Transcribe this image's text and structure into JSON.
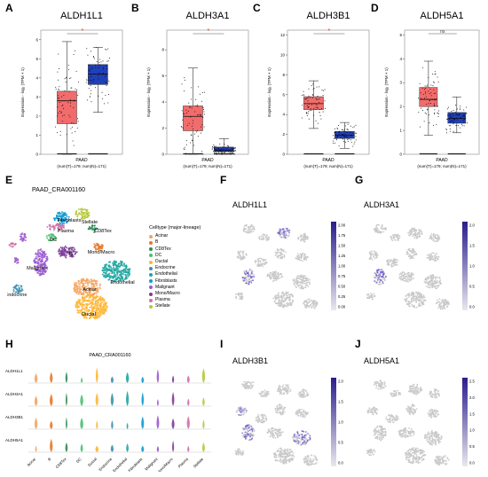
{
  "panel_letters": [
    "A",
    "B",
    "C",
    "D",
    "E",
    "F",
    "G",
    "H",
    "I",
    "J"
  ],
  "chart_data": [
    {
      "type": "box",
      "panel": "A",
      "title": "ALDH1L1",
      "ylabel": "Expression - log₂ (TPM + 1)",
      "xlabel": "PAAD",
      "xsublabel": "(num(T)=179; num(N)=171)",
      "ylim": [
        0,
        6.5
      ],
      "yticks": [
        0,
        1,
        2,
        3,
        4,
        5,
        6
      ],
      "sig": "*",
      "groups": [
        {
          "name": "T",
          "color": "#f26c6c",
          "q1": 1.6,
          "median": 2.8,
          "q3": 3.3,
          "whisker_low": 0,
          "whisker_high": 5.9
        },
        {
          "name": "N",
          "color": "#2040b8",
          "q1": 3.65,
          "median": 4.2,
          "q3": 4.7,
          "whisker_low": 2.2,
          "whisker_high": 5.6
        }
      ]
    },
    {
      "type": "box",
      "panel": "B",
      "title": "ALDH3A1",
      "ylabel": "Expression - log₂ (TPM + 1)",
      "xlabel": "PAAD",
      "xsublabel": "(num(T)=179; num(N)=171)",
      "ylim": [
        0,
        9.5
      ],
      "yticks": [
        0,
        2,
        4,
        6,
        8
      ],
      "sig": "*",
      "groups": [
        {
          "name": "T",
          "color": "#f26c6c",
          "q1": 1.8,
          "median": 2.9,
          "q3": 3.7,
          "whisker_low": 0,
          "whisker_high": 6.6
        },
        {
          "name": "N",
          "color": "#2040b8",
          "q1": 0.2,
          "median": 0.32,
          "q3": 0.55,
          "whisker_low": 0,
          "whisker_high": 1.2
        }
      ]
    },
    {
      "type": "box",
      "panel": "C",
      "title": "ALDH3B1",
      "ylabel": "Expression - log₂ (TPM + 1)",
      "xlabel": "PAAD",
      "xsublabel": "(num(T)=179; num(N)=171)",
      "ylim": [
        0,
        12.5
      ],
      "yticks": [
        0,
        2,
        4,
        6,
        8,
        10,
        12
      ],
      "sig": "*",
      "groups": [
        {
          "name": "T",
          "color": "#f26c6c",
          "q1": 4.5,
          "median": 5.1,
          "q3": 5.8,
          "whisker_low": 2.6,
          "whisker_high": 7.4
        },
        {
          "name": "N",
          "color": "#2040b8",
          "q1": 1.6,
          "median": 1.9,
          "q3": 2.3,
          "whisker_low": 0.6,
          "whisker_high": 3.2
        }
      ]
    },
    {
      "type": "box",
      "panel": "D",
      "title": "ALDH5A1",
      "ylabel": "Expression - log₂ (TPM + 1)",
      "xlabel": "PAAD",
      "xsublabel": "(num(T)=179; num(N)=171)",
      "ylim": [
        0,
        5.2
      ],
      "yticks": [
        0,
        1,
        2,
        3,
        4,
        5
      ],
      "sig": "ns",
      "groups": [
        {
          "name": "T",
          "color": "#f26c6c",
          "q1": 2.0,
          "median": 2.3,
          "q3": 2.8,
          "whisker_low": 0.8,
          "whisker_high": 3.9
        },
        {
          "name": "N",
          "color": "#2040b8",
          "q1": 1.3,
          "median": 1.5,
          "q3": 1.75,
          "whisker_low": 0.9,
          "whisker_high": 2.4
        }
      ]
    },
    {
      "type": "scatter",
      "panel": "E",
      "title": "PAAD_CRA001160",
      "legend_title": "Celltype (major-lineage)",
      "legend": [
        {
          "name": "Acinar",
          "color": "#f4a460"
        },
        {
          "name": "B",
          "color": "#e8792a"
        },
        {
          "name": "CD8Tex",
          "color": "#2e8b57"
        },
        {
          "name": "DC",
          "color": "#4bbf73"
        },
        {
          "name": "Ductal",
          "color": "#ffb531"
        },
        {
          "name": "Endocrine",
          "color": "#3d8fb0"
        },
        {
          "name": "Endothelial",
          "color": "#1ea6a0"
        },
        {
          "name": "Fibroblasts",
          "color": "#0e9bd1"
        },
        {
          "name": "Malignant",
          "color": "#9b59d0"
        },
        {
          "name": "Mono/Macro",
          "color": "#7d3c98"
        },
        {
          "name": "Plasma",
          "color": "#d070a8"
        },
        {
          "name": "Stellate",
          "color": "#b5c934"
        }
      ],
      "cluster_labels": [
        "Fibroblasts",
        "Stellate",
        "Plasma",
        "CD8Tex",
        "DC",
        "Mono/Macro",
        "B",
        "Malignant",
        "Endothelial",
        "Acinar",
        "Endocrine",
        "Ductal"
      ]
    },
    {
      "type": "heatmap",
      "panel": "F",
      "title": "ALDH1L1",
      "colorbar_ticks": [
        "2.00",
        "1.75",
        "1.50",
        "1.25",
        "1.00",
        "0.75",
        "0.50",
        "0.25",
        "0.00"
      ]
    },
    {
      "type": "heatmap",
      "panel": "G",
      "title": "ALDH3A1",
      "colorbar_ticks": [
        "2.0",
        "1.5",
        "1.0",
        "0.5",
        "0.0"
      ]
    },
    {
      "type": "violin",
      "panel": "H",
      "title": "PAAD_CRA001160",
      "genes": [
        "ALDH1L1",
        "ALDH3A1",
        "ALDH3B1",
        "ALDH5A1"
      ],
      "categories": [
        "Acinar",
        "B",
        "CD8Tex",
        "DC",
        "Ductal",
        "Endocrine",
        "Endothelial",
        "Fibroblasts",
        "Malignant",
        "Mono/Macro",
        "Plasma",
        "Stellate"
      ]
    },
    {
      "type": "heatmap",
      "panel": "I",
      "title": "ALDH3B1",
      "colorbar_ticks": [
        "2.0",
        "1.5",
        "1.0",
        "0.5",
        "0.0"
      ]
    },
    {
      "type": "heatmap",
      "panel": "J",
      "title": "ALDH5A1",
      "colorbar_ticks": [
        "2.5",
        "2.0",
        "1.5",
        "1.0",
        "0.5",
        "0.0"
      ]
    }
  ]
}
